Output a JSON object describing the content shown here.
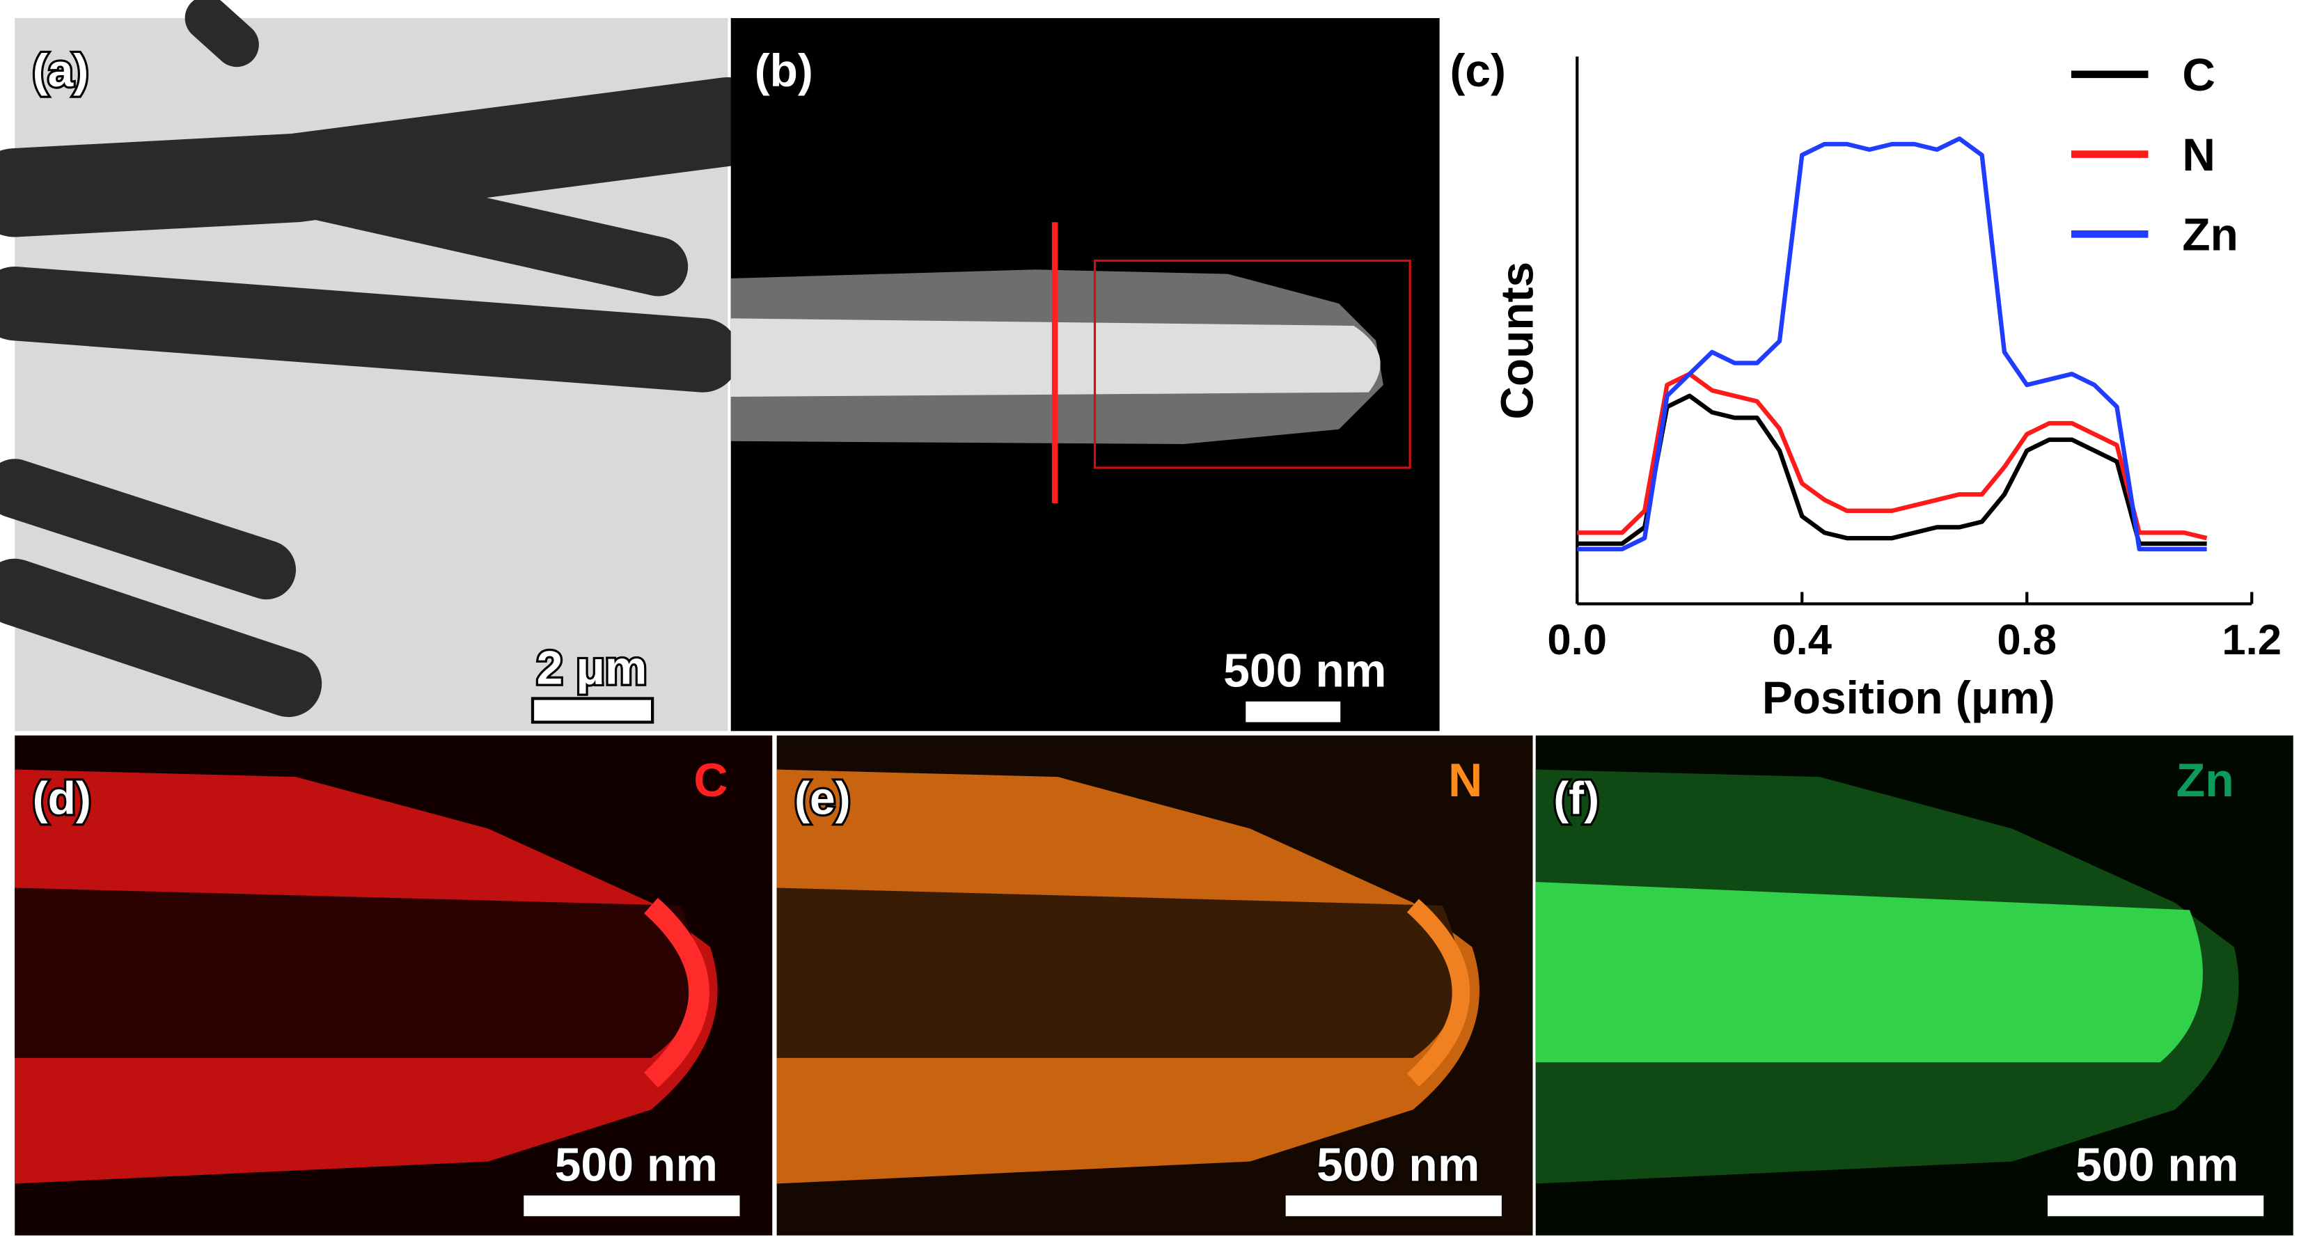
{
  "panels": [
    {
      "label": "(a)",
      "scale_bar": "2 μm"
    },
    {
      "label": "(b)",
      "scale_bar": "500 nm"
    },
    {
      "label": "(d)",
      "element": "C",
      "scale_bar": "500 nm"
    },
    {
      "label": "(e)",
      "element": "N",
      "scale_bar": "500 nm"
    },
    {
      "label": "(f)",
      "element": "Zn",
      "scale_bar": "500 nm"
    }
  ],
  "chart_data": {
    "type": "line",
    "panel_label": "(c)",
    "xlabel": "Position (μm)",
    "ylabel": "Counts",
    "x": [
      0,
      0.04,
      0.08,
      0.12,
      0.16,
      0.2,
      0.24,
      0.28,
      0.32,
      0.36,
      0.4,
      0.44,
      0.48,
      0.52,
      0.56,
      0.6,
      0.64,
      0.68,
      0.72,
      0.76,
      0.8,
      0.84,
      0.88,
      0.92,
      0.96,
      1.0,
      1.04,
      1.08,
      1.12
    ],
    "series": [
      {
        "name": "C",
        "color": "#000000",
        "values": [
          11,
          11,
          11,
          14,
          36,
          38,
          35,
          34,
          34,
          28,
          16,
          13,
          12,
          12,
          12,
          13,
          14,
          14,
          15,
          20,
          28,
          30,
          30,
          28,
          26,
          11,
          11,
          11,
          11
        ]
      },
      {
        "name": "N",
        "color": "#ff1a1a",
        "values": [
          13,
          13,
          13,
          17,
          40,
          42,
          39,
          38,
          37,
          32,
          22,
          19,
          17,
          17,
          17,
          18,
          19,
          20,
          20,
          25,
          31,
          33,
          33,
          31,
          29,
          13,
          13,
          13,
          12
        ]
      },
      {
        "name": "Zn",
        "color": "#1f3cff",
        "values": [
          10,
          10,
          10,
          12,
          38,
          42,
          46,
          44,
          44,
          48,
          82,
          84,
          84,
          83,
          84,
          84,
          83,
          85,
          82,
          46,
          40,
          41,
          42,
          40,
          36,
          10,
          10,
          10,
          10
        ]
      }
    ],
    "xlim": [
      0,
      1.2
    ],
    "xticks": [
      {
        "value": 0,
        "label": "0.0"
      },
      0.4,
      0.8,
      1.2
    ],
    "ylim": [
      0,
      100
    ],
    "legend": "upper right"
  }
}
